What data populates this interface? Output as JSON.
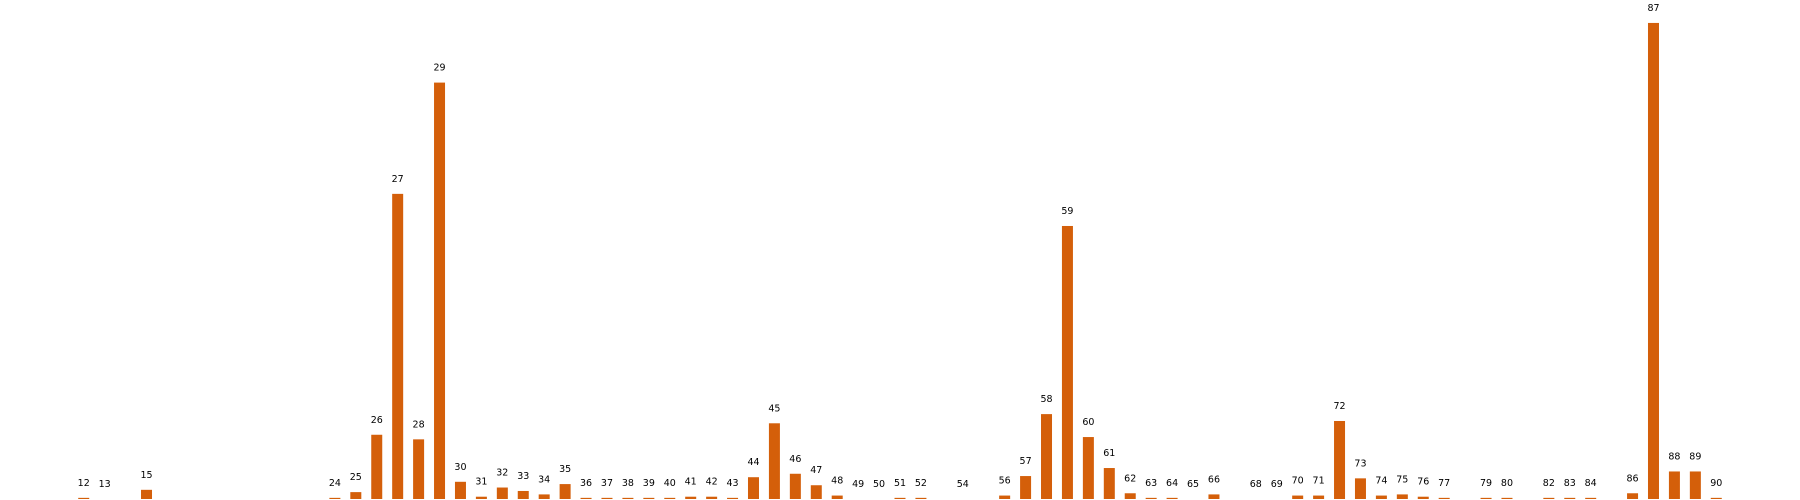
{
  "chart_data": {
    "type": "bar",
    "x": [
      12,
      13,
      15,
      24,
      25,
      26,
      27,
      28,
      29,
      30,
      31,
      32,
      33,
      34,
      35,
      36,
      37,
      38,
      39,
      40,
      41,
      42,
      43,
      44,
      45,
      46,
      47,
      48,
      49,
      50,
      51,
      52,
      54,
      56,
      57,
      58,
      59,
      60,
      61,
      62,
      63,
      64,
      65,
      66,
      68,
      69,
      70,
      71,
      72,
      73,
      74,
      75,
      76,
      77,
      79,
      80,
      82,
      83,
      84,
      86,
      87,
      88,
      89,
      90
    ],
    "values": [
      1,
      0,
      8,
      1,
      6,
      56,
      266,
      52,
      363,
      15,
      2,
      10,
      7,
      4,
      13,
      1,
      1,
      1,
      1,
      1,
      2,
      2,
      1,
      19,
      66,
      22,
      12,
      3,
      0,
      0,
      1,
      1,
      0,
      3,
      20,
      74,
      238,
      54,
      27,
      5,
      1,
      1,
      0,
      4,
      0,
      0,
      3,
      3,
      68,
      18,
      3,
      4,
      2,
      1,
      1,
      1,
      1,
      1,
      1,
      5,
      415,
      24,
      24,
      1
    ],
    "color": "#d45f0a",
    "xlim": [
      8,
      94
    ],
    "ylim": [
      0,
      435
    ]
  }
}
